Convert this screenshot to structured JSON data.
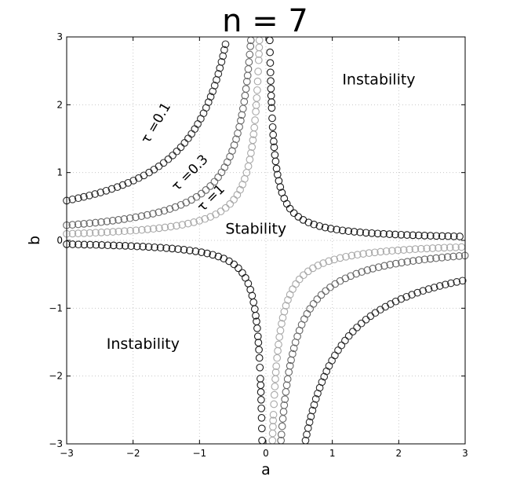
{
  "chart_data": {
    "type": "scatter",
    "title": "n = 7",
    "xlabel": "a",
    "ylabel": "b",
    "xlim": [
      -3,
      3
    ],
    "ylim": [
      -3,
      3
    ],
    "xticks": [
      -3,
      -2,
      -1,
      0,
      1,
      2,
      3
    ],
    "yticks": [
      -3,
      -2,
      -1,
      0,
      1,
      2,
      3
    ],
    "xtick_labels": [
      "−3",
      "−2",
      "−1",
      "0",
      "1",
      "2",
      "3"
    ],
    "ytick_labels": [
      "−3",
      "−2",
      "−1",
      "0",
      "1",
      "2",
      "3"
    ],
    "grid": true,
    "marker": "open-circle",
    "series": [
      {
        "name": "τ =0.1",
        "k": -1.76,
        "color": "#2a2a2a"
      },
      {
        "name": "τ =0.3",
        "k": -0.67,
        "color": "#666666"
      },
      {
        "name": "τ =1",
        "k": -0.29,
        "color": "#a8a8a8"
      },
      {
        "name": "",
        "k": 0.17,
        "color": "#1a1a1a"
      }
    ],
    "annotations": [
      {
        "text": "Instability",
        "x": 1.7,
        "y": 2.3
      },
      {
        "text": "Instability",
        "x": -1.85,
        "y": -1.6
      },
      {
        "text": "Stability",
        "x": -0.15,
        "y": 0.1
      },
      {
        "text": "τ =0.1",
        "x": -1.6,
        "y": 1.7,
        "rotation": -60
      },
      {
        "text": "τ =0.3",
        "x": -1.1,
        "y": 0.95,
        "rotation": -45
      },
      {
        "text": "τ =1",
        "x": -0.78,
        "y": 0.58,
        "rotation": -45
      }
    ]
  }
}
